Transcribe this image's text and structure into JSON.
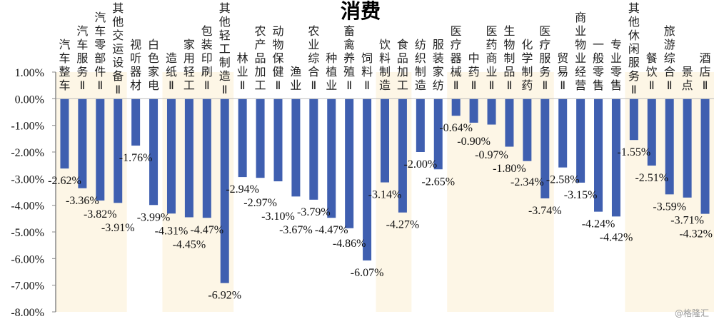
{
  "chart_data": {
    "type": "bar",
    "title": "消费",
    "xlabel": "",
    "ylabel": "",
    "ylim": [
      -8,
      1
    ],
    "yticks": [
      "1.00%",
      "0.00%",
      "-1.00%",
      "-2.00%",
      "-3.00%",
      "-4.00%",
      "-5.00%",
      "-6.00%",
      "-7.00%",
      "-8.00%"
    ],
    "categories": [
      "汽车整车",
      "汽车服务Ⅱ",
      "汽车零部件Ⅱ",
      "其他交运设备Ⅱ",
      "视听器材",
      "白色家电",
      "造纸Ⅱ",
      "家用轻工",
      "包装印刷Ⅱ",
      "其他轻工制造Ⅱ",
      "林业Ⅱ",
      "农产品加工",
      "动物保健Ⅱ",
      "渔业",
      "农业综合Ⅱ",
      "种植业",
      "畜禽养殖Ⅱ",
      "饲料Ⅱ",
      "饮料制造",
      "食品加工",
      "纺织制造",
      "服装家纺",
      "医疗器械Ⅱ",
      "中药Ⅱ",
      "医药商业Ⅱ",
      "生物制品Ⅱ",
      "化学制药",
      "医疗服务Ⅱ",
      "贸易Ⅱ",
      "商业物业经营",
      "一般零售",
      "专业零售",
      "其他休闲服务Ⅱ",
      "餐饮Ⅱ",
      "旅游综合Ⅱ",
      "景点",
      "酒店Ⅱ"
    ],
    "values": [
      -2.62,
      -3.36,
      -3.82,
      -3.91,
      -1.76,
      -3.99,
      -4.31,
      -4.45,
      -4.47,
      -6.92,
      -2.94,
      -2.97,
      -3.1,
      -3.67,
      -3.79,
      -4.47,
      -4.86,
      -6.07,
      -3.14,
      -4.27,
      -2.0,
      -2.65,
      -0.64,
      -0.9,
      -0.97,
      -1.8,
      -2.34,
      -3.74,
      -2.58,
      -3.15,
      -4.24,
      -4.42,
      -1.55,
      -2.51,
      -3.59,
      -3.71,
      -4.32
    ],
    "data_labels": [
      "-2.62%",
      "-3.36%",
      "-3.82%",
      "-3.91%",
      "-1.76%",
      "-3.99%",
      "-4.31%",
      "-4.45%",
      "-4.47%",
      "-6.92%",
      "-2.94%",
      "-2.97%",
      "-3.10%",
      "-3.67%",
      "-3.79%",
      "-4.47%",
      "-4.86%",
      "-6.07%",
      "-3.14%",
      "-4.27%",
      "-2.00%",
      "-2.65%",
      "-0.64%",
      "-0.90%",
      "-0.97%",
      "-1.80%",
      "-2.34%",
      "-3.74%",
      "-2.58%",
      "-3.15%",
      "-4.24%",
      "-4.42%",
      "-1.55%",
      "-2.51%",
      "-3.59%",
      "-3.71%",
      "-4.32%"
    ],
    "shaded_groups": [
      [
        0,
        3
      ],
      [
        6,
        9
      ],
      [
        18,
        19
      ],
      [
        22,
        27
      ],
      [
        32,
        36
      ]
    ],
    "grid": false,
    "legend": "none"
  },
  "colors": {
    "bar": "#3f5fb0",
    "shade": "#fdf6e6",
    "axis": "#888888"
  },
  "watermark": "@格隆汇"
}
